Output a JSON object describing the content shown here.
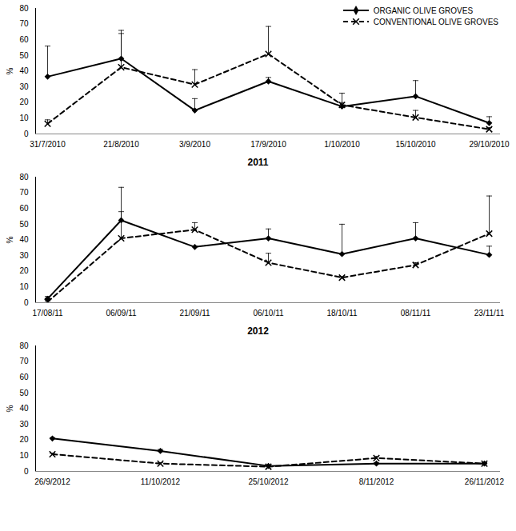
{
  "chart_data": [
    {
      "type": "line",
      "categories": [
        "31/7/2010",
        "21/8/2010",
        "3/9/2010",
        "17/9/2010",
        "1/10/2010",
        "15/10/2010",
        "29/10/2010"
      ],
      "y_label": "%",
      "ylim": [
        0,
        80
      ],
      "yticks": [
        0,
        10,
        20,
        30,
        40,
        50,
        60,
        70,
        80
      ],
      "legend": "top-right",
      "series": [
        {
          "name": "ORGANIC OLIVE GROVES",
          "color": "#000000",
          "marker": "diamond",
          "line_style": "solid",
          "values": [
            36.5,
            48,
            15,
            33.5,
            17.5,
            24,
            7
          ],
          "errors": [
            19.5,
            18,
            7.5,
            2.5,
            8.5,
            10,
            4
          ]
        },
        {
          "name": "CONVENTIONAL OLIVE GROVES",
          "color": "#000000",
          "marker": "x",
          "line_style": "dashed",
          "values": [
            6.5,
            42.5,
            31.5,
            51,
            18.5,
            10.5,
            3
          ],
          "errors": [
            2.5,
            21.5,
            9.5,
            17.5,
            1.5,
            4.5,
            1
          ]
        }
      ]
    },
    {
      "type": "line",
      "title": "2011",
      "categories": [
        "17/08/11",
        "06/09/11",
        "21/09/11",
        "06/10/11",
        "18/10/11",
        "08/11/11",
        "23/11/11"
      ],
      "y_label": "%",
      "ylim": [
        0,
        80
      ],
      "yticks": [
        0,
        10,
        20,
        30,
        40,
        50,
        60,
        70,
        80
      ],
      "series": [
        {
          "color": "#000000",
          "marker": "diamond",
          "line_style": "solid",
          "values": [
            2.5,
            52.5,
            35.5,
            41,
            31,
            41,
            30.5
          ],
          "errors": [
            1.5,
            21,
            0.5,
            6,
            19,
            10,
            5.5
          ]
        },
        {
          "color": "#000000",
          "marker": "x",
          "line_style": "dashed",
          "values": [
            0.5,
            41,
            46.5,
            25.5,
            16,
            24,
            44
          ],
          "errors": [
            0.5,
            17,
            4.5,
            6,
            0.5,
            1.5,
            24
          ]
        }
      ]
    },
    {
      "type": "line",
      "title": "2012",
      "categories": [
        "26/9/2012",
        "11/10/2012",
        "25/10/2012",
        "8/11/2012",
        "26/11/2012"
      ],
      "y_label": "%",
      "ylim": [
        0,
        80
      ],
      "yticks": [
        0,
        10,
        20,
        30,
        40,
        50,
        60,
        70,
        80
      ],
      "series": [
        {
          "color": "#000000",
          "marker": "diamond",
          "line_style": "solid",
          "values": [
            21,
            13,
            3.5,
            5,
            5
          ],
          "errors": [
            0.5,
            1,
            0.5,
            0.5,
            0.5
          ]
        },
        {
          "color": "#000000",
          "marker": "x",
          "line_style": "dashed",
          "values": [
            11,
            5,
            3,
            8.5,
            5
          ],
          "errors": [
            0.5,
            0.5,
            0.5,
            1,
            0.5
          ]
        }
      ]
    }
  ]
}
